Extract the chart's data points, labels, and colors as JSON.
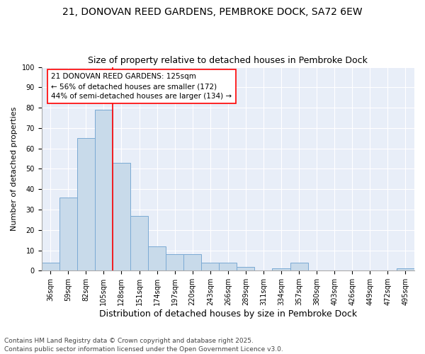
{
  "title_line1": "21, DONOVAN REED GARDENS, PEMBROKE DOCK, SA72 6EW",
  "title_line2": "Size of property relative to detached houses in Pembroke Dock",
  "xlabel": "Distribution of detached houses by size in Pembroke Dock",
  "ylabel": "Number of detached properties",
  "categories": [
    "36sqm",
    "59sqm",
    "82sqm",
    "105sqm",
    "128sqm",
    "151sqm",
    "174sqm",
    "197sqm",
    "220sqm",
    "243sqm",
    "266sqm",
    "289sqm",
    "311sqm",
    "334sqm",
    "357sqm",
    "380sqm",
    "403sqm",
    "426sqm",
    "449sqm",
    "472sqm",
    "495sqm"
  ],
  "values": [
    4,
    36,
    65,
    79,
    53,
    27,
    12,
    8,
    8,
    4,
    4,
    2,
    0,
    1,
    4,
    0,
    0,
    0,
    0,
    0,
    1
  ],
  "bar_color": "#c8daea",
  "bar_edge_color": "#7baad4",
  "vline_index": 4,
  "vline_color": "red",
  "annotation_text": "21 DONOVAN REED GARDENS: 125sqm\n← 56% of detached houses are smaller (172)\n44% of semi-detached houses are larger (134) →",
  "annotation_box_color": "white",
  "annotation_box_edge": "red",
  "ylim": [
    0,
    100
  ],
  "yticks": [
    0,
    10,
    20,
    30,
    40,
    50,
    60,
    70,
    80,
    90,
    100
  ],
  "background_color": "#e8eef8",
  "footer": "Contains HM Land Registry data © Crown copyright and database right 2025.\nContains public sector information licensed under the Open Government Licence v3.0.",
  "title_fontsize": 10,
  "subtitle_fontsize": 9,
  "annotation_fontsize": 7.5,
  "footer_fontsize": 6.5,
  "ylabel_fontsize": 8,
  "xlabel_fontsize": 9,
  "tick_fontsize": 7
}
